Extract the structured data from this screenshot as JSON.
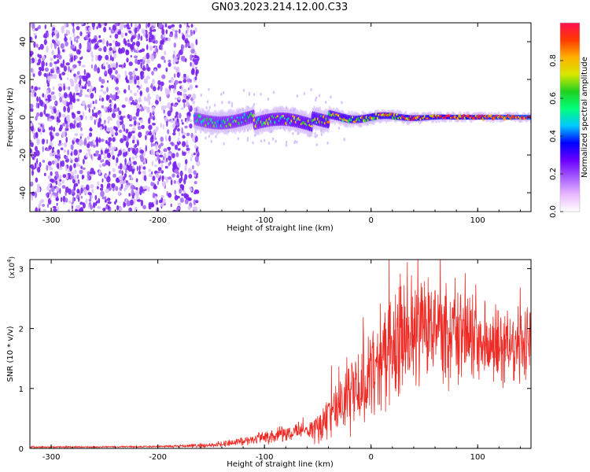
{
  "title": "GN03.2023.214.12.00.C33",
  "colors": {
    "snr_line": "#ee2a24",
    "scatter_dots": "#7a22ee",
    "axis": "#000000",
    "colormap": [
      "#ffffff",
      "#e9b8ff",
      "#a65cff",
      "#6a00ff",
      "#0000ff",
      "#00c8ff",
      "#00ff7a",
      "#20d020",
      "#d8e800",
      "#ffb000",
      "#ff3a00",
      "#ff1050"
    ]
  },
  "chart_data": [
    {
      "type": "heatmap",
      "xlabel": "Height of straight line (km)",
      "ylabel": "Frequency (Hz)",
      "xlim": [
        -320,
        150
      ],
      "ylim": [
        -50,
        50
      ],
      "x_ticks": [
        -300,
        -200,
        -100,
        0,
        100
      ],
      "y_ticks": [
        -40,
        -20,
        0,
        20,
        40
      ],
      "colorbar": {
        "label": "Normalized spectral amplitude",
        "range": [
          0,
          1
        ],
        "ticks": [
          0.0,
          0.2,
          0.4,
          0.6,
          0.8
        ]
      },
      "features": [
        {
          "description": "noise",
          "x_range": [
            -320,
            -165
          ],
          "amplitude": 0.2
        },
        {
          "description": "signal band",
          "x_range": [
            -165,
            150
          ],
          "freq_center": 0,
          "amplitude_start": 0.5,
          "amplitude_end": 1.0
        }
      ]
    },
    {
      "type": "line",
      "xlabel": "Height of straight line (km)",
      "ylabel": "SNR (10 * v/v)",
      "y_multiplier": "(x10",
      "y_multiplier_exp": "4",
      "xlim": [
        -320,
        150
      ],
      "ylim": [
        0,
        3.15
      ],
      "x_ticks": [
        -300,
        -200,
        -100,
        0,
        100
      ],
      "y_ticks": [
        0,
        1,
        2,
        3
      ],
      "envelope": {
        "x": [
          -320,
          -200,
          -150,
          -120,
          -100,
          -80,
          -60,
          -45,
          -35,
          -20,
          -10,
          0,
          10,
          20,
          30,
          40,
          60,
          80,
          100,
          120,
          150
        ],
        "y_mean": [
          0.02,
          0.03,
          0.05,
          0.12,
          0.18,
          0.25,
          0.3,
          0.4,
          0.7,
          0.9,
          1.1,
          1.3,
          1.5,
          1.7,
          1.85,
          1.9,
          1.9,
          1.85,
          1.8,
          1.75,
          1.7
        ],
        "y_spread": [
          0.01,
          0.01,
          0.03,
          0.06,
          0.08,
          0.1,
          0.14,
          0.25,
          0.4,
          0.5,
          0.55,
          0.6,
          0.65,
          0.75,
          0.85,
          0.8,
          0.7,
          0.6,
          0.55,
          0.5,
          0.45
        ]
      }
    }
  ]
}
